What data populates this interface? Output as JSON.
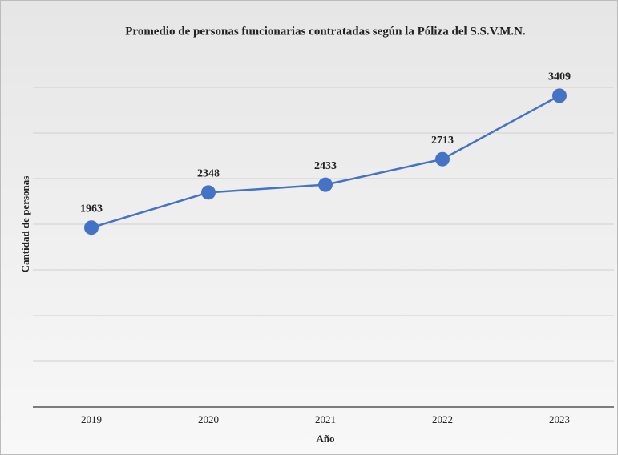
{
  "chart_data": {
    "type": "line",
    "title": "Promedio de personas funcionarias contratadas según la Póliza del S.S.V.M.N.",
    "x_label": "Año",
    "y_label": "Cantidad de personas",
    "categories": [
      "2019",
      "2020",
      "2021",
      "2022",
      "2023"
    ],
    "series": [
      {
        "name": "Cantidad de personas",
        "color": "#4472c4",
        "values": [
          1963,
          2348,
          2433,
          2713,
          3409
        ]
      }
    ],
    "ylim": [
      0,
      4000
    ],
    "yticks": [
      0,
      500,
      1000,
      1500,
      2000,
      2500,
      3000,
      3500
    ],
    "grid": true
  }
}
